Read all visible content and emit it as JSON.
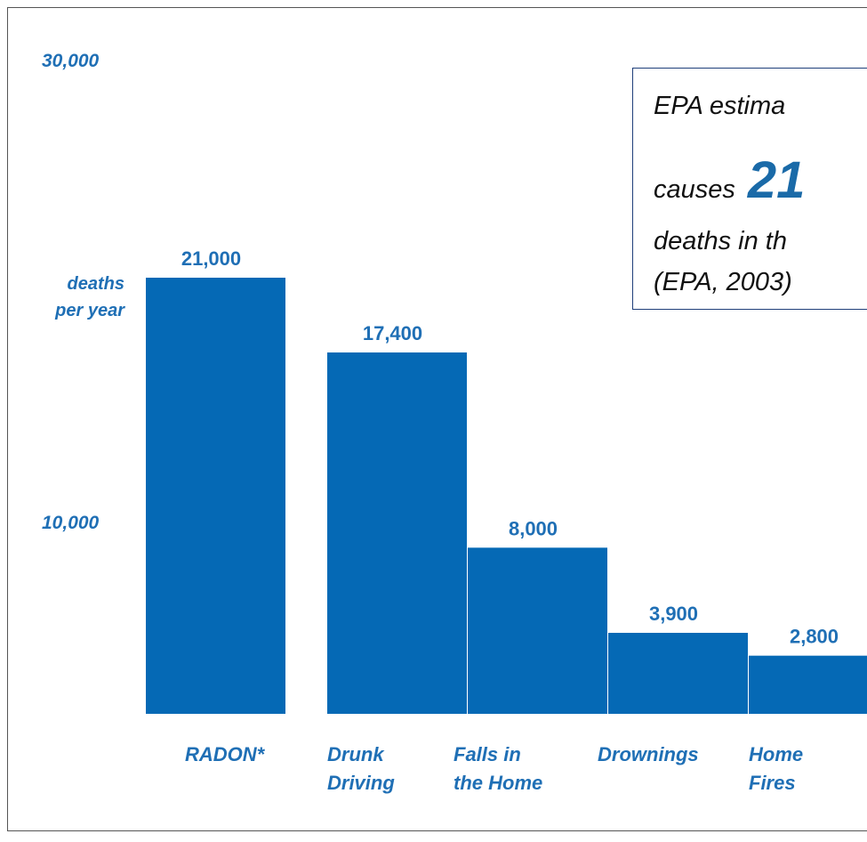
{
  "chart_data": {
    "type": "bar",
    "categories": [
      "RADON*",
      "Drunk\nDriving",
      "Falls in\nthe Home",
      "Drownings",
      "Home\nFires"
    ],
    "values": [
      21000,
      17400,
      8000,
      3900,
      2800
    ],
    "value_labels": [
      "21,000",
      "17,400",
      "8,000",
      "3,900",
      "2,800"
    ],
    "ylabel": "deaths\nper year",
    "yticks": [
      "30,000",
      "10,000"
    ],
    "bar_color": "#0569b5",
    "label_color": "#1f6fb5"
  },
  "callout": {
    "line1": "EPA estima",
    "line2_prefix": "causes",
    "line2_big": "21",
    "line3": "deaths in th",
    "line4": "(EPA, 2003)"
  }
}
